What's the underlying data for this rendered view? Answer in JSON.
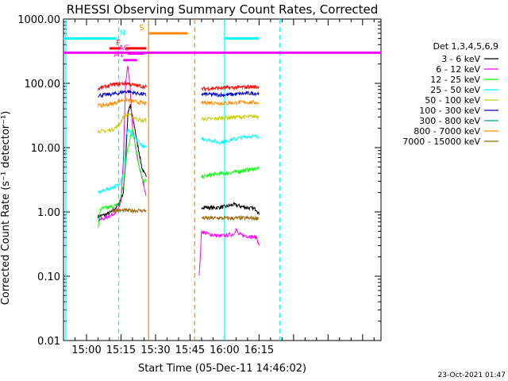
{
  "chart_data": {
    "type": "line",
    "title": "RHESSI Observing Summary Count Rates, Corrected",
    "xlabel": "Start Time (05-Dec-11 14:46:02)",
    "ylabel": "Corrected Count Rate (s⁻¹ detector⁻¹)",
    "yscale": "log",
    "ylim": [
      0.01,
      1000
    ],
    "xlim_minutes": [
      50,
      188
    ],
    "y_ticks": [
      "0.01",
      "0.10",
      "1.00",
      "10.00",
      "100.00",
      "1000.00"
    ],
    "x_ticks": [
      "15:00",
      "15:15",
      "15:30",
      "15:45",
      "16:00",
      "16:15"
    ],
    "x_tick_minutes": [
      60,
      75,
      90,
      105,
      120,
      135
    ],
    "legend_title": "Det 1,3,4,5,6,9",
    "legend_position": "right",
    "timestamp": "23-Oct-2021 01:47",
    "series": [
      {
        "name": "3 - 6 keV",
        "color": "#000000",
        "segments": [
          [
            [
              65,
              0.85
            ],
            [
              68,
              0.9
            ],
            [
              71,
              1.0
            ],
            [
              74,
              1.3
            ],
            [
              76,
              2.0
            ],
            [
              77,
              6
            ],
            [
              78,
              35
            ],
            [
              79,
              45
            ],
            [
              80,
              30
            ],
            [
              81,
              20
            ],
            [
              82,
              12
            ],
            [
              83,
              8
            ],
            [
              84,
              5
            ],
            [
              85,
              4
            ],
            [
              86,
              3.5
            ]
          ],
          [
            [
              110,
              1.2
            ],
            [
              115,
              1.15
            ],
            [
              120,
              1.2
            ],
            [
              124,
              1.3
            ],
            [
              128,
              1.2
            ],
            [
              134,
              1.1
            ],
            [
              135,
              0.9
            ]
          ]
        ]
      },
      {
        "name": "6 - 12 keV",
        "color": "#ff00ff",
        "segments": [
          [
            [
              65,
              0.75
            ],
            [
              68,
              0.8
            ],
            [
              71,
              0.9
            ],
            [
              74,
              1.1
            ],
            [
              75,
              1.5
            ],
            [
              76,
              6
            ],
            [
              77,
              100
            ],
            [
              78,
              190
            ],
            [
              79,
              80
            ],
            [
              80,
              20
            ],
            [
              81,
              12
            ],
            [
              82,
              7
            ],
            [
              83,
              5
            ],
            [
              84,
              3.5
            ],
            [
              85,
              2.5
            ],
            [
              86,
              1.8
            ]
          ],
          [
            [
              109,
              0.1
            ],
            [
              110,
              0.5
            ],
            [
              113,
              0.45
            ],
            [
              118,
              0.42
            ],
            [
              124,
              0.45
            ],
            [
              125,
              0.55
            ],
            [
              126,
              0.45
            ],
            [
              130,
              0.42
            ],
            [
              134,
              0.4
            ],
            [
              135,
              0.3
            ]
          ]
        ]
      },
      {
        "name": "12 - 25 keV",
        "color": "#00ff00",
        "segments": [
          [
            [
              65,
              0.55
            ],
            [
              66,
              1.1
            ],
            [
              68,
              1.15
            ],
            [
              71,
              1.2
            ],
            [
              74,
              1.3
            ],
            [
              76,
              2.5
            ],
            [
              77,
              6
            ],
            [
              78,
              10
            ],
            [
              79,
              14
            ],
            [
              80,
              20
            ],
            [
              81,
              12
            ],
            [
              82,
              8
            ],
            [
              83,
              5
            ],
            [
              84,
              3.5
            ],
            [
              85,
              2.8
            ],
            [
              86,
              3.2
            ]
          ],
          [
            [
              110,
              3.5
            ],
            [
              115,
              3.8
            ],
            [
              120,
              4.0
            ],
            [
              125,
              4.2
            ],
            [
              130,
              4.5
            ],
            [
              135,
              4.8
            ]
          ]
        ]
      },
      {
        "name": "25 - 50 keV",
        "color": "#00ffff",
        "segments": [
          [
            [
              65,
              2.0
            ],
            [
              68,
              2.2
            ],
            [
              71,
              2.4
            ],
            [
              74,
              2.6
            ],
            [
              76,
              4
            ],
            [
              77,
              14
            ],
            [
              78,
              20
            ],
            [
              79,
              17
            ],
            [
              80,
              15
            ],
            [
              81,
              14
            ],
            [
              82,
              13
            ],
            [
              83,
              12
            ],
            [
              84,
              11
            ],
            [
              85,
              10
            ],
            [
              86,
              10
            ]
          ],
          [
            [
              110,
              14
            ],
            [
              114,
              13
            ],
            [
              118,
              12
            ],
            [
              122,
              13
            ],
            [
              126,
              14
            ],
            [
              130,
              15
            ],
            [
              135,
              15
            ]
          ]
        ]
      },
      {
        "name": "50 - 100 keV",
        "color": "#cccc00",
        "segments": [
          [
            [
              65,
              18
            ],
            [
              68,
              18
            ],
            [
              71,
              19
            ],
            [
              74,
              22
            ],
            [
              76,
              30
            ],
            [
              78,
              33
            ],
            [
              80,
              30
            ],
            [
              82,
              28
            ],
            [
              84,
              26
            ],
            [
              86,
              27
            ]
          ],
          [
            [
              110,
              28
            ],
            [
              115,
              28
            ],
            [
              120,
              29
            ],
            [
              125,
              30
            ],
            [
              130,
              30
            ],
            [
              135,
              31
            ]
          ]
        ]
      },
      {
        "name": "100 - 300 keV",
        "color": "#0000cc",
        "segments": [
          [
            [
              65,
              65
            ],
            [
              68,
              66
            ],
            [
              71,
              68
            ],
            [
              74,
              70
            ],
            [
              76,
              74
            ],
            [
              78,
              75
            ],
            [
              80,
              72
            ],
            [
              82,
              70
            ],
            [
              84,
              68
            ],
            [
              86,
              65
            ]
          ],
          [
            [
              110,
              68
            ],
            [
              115,
              67
            ],
            [
              120,
              66
            ],
            [
              125,
              68
            ],
            [
              130,
              70
            ],
            [
              135,
              70
            ]
          ]
        ]
      },
      {
        "name": "300 - 800 keV",
        "color": "#009999",
        "segments": []
      },
      {
        "name": "800 - 7000 keV",
        "color": "#ff8800",
        "segments": [
          [
            [
              65,
              45
            ],
            [
              68,
              46
            ],
            [
              71,
              48
            ],
            [
              74,
              52
            ],
            [
              76,
              56
            ],
            [
              78,
              55
            ],
            [
              80,
              53
            ],
            [
              82,
              51
            ],
            [
              84,
              50
            ],
            [
              86,
              48
            ]
          ],
          [
            [
              110,
              50
            ],
            [
              115,
              50
            ],
            [
              120,
              49
            ],
            [
              125,
              50
            ],
            [
              130,
              51
            ],
            [
              135,
              50
            ]
          ]
        ]
      },
      {
        "name": "7000 - 15000 keV",
        "color": "#996600",
        "segments": [
          [
            [
              71,
              1.05
            ],
            [
              86,
              1.05
            ]
          ],
          [
            [
              110,
              0.8
            ],
            [
              135,
              0.8
            ]
          ]
        ]
      },
      {
        "name": "",
        "color": "#ff0000",
        "segments": [
          [
            [
              65,
              82
            ],
            [
              68,
              88
            ],
            [
              71,
              95
            ],
            [
              74,
              98
            ],
            [
              76,
              100
            ],
            [
              78,
              100
            ],
            [
              80,
              95
            ],
            [
              82,
              92
            ],
            [
              84,
              90
            ],
            [
              86,
              88
            ]
          ],
          [
            [
              110,
              82
            ],
            [
              115,
              84
            ],
            [
              120,
              85
            ],
            [
              125,
              86
            ],
            [
              130,
              88
            ],
            [
              135,
              88
            ]
          ]
        ]
      }
    ],
    "flag_lines": [
      {
        "label": "N",
        "color": "#00ffff",
        "y": 500,
        "segments": [
          [
            50,
            73
          ],
          [
            120,
            135
          ]
        ]
      },
      {
        "label": "",
        "color": "#ff00ff",
        "y": 300,
        "segments": [
          [
            50,
            188
          ]
        ]
      },
      {
        "label": "F",
        "color": "#ff0000",
        "y": 350,
        "segments": [
          [
            70,
            75
          ],
          [
            77,
            86
          ]
        ]
      },
      {
        "label": "AC",
        "color": "#ff00ff",
        "y": 290,
        "segments": [
          [
            78,
            85
          ]
        ]
      },
      {
        "label": "A1",
        "color": "#ff00ff",
        "y": 230,
        "segments": [
          [
            76,
            82
          ]
        ]
      },
      {
        "label": "S",
        "color": "#ff8800",
        "y": 600,
        "segments": [
          [
            87,
            104
          ]
        ]
      }
    ],
    "vlines": [
      {
        "x": 51,
        "color": "#00ffff",
        "style": "solid"
      },
      {
        "x": 74,
        "color": "#00ffff",
        "style": "dashed"
      },
      {
        "x": 87,
        "color": "#ff8800",
        "style": "solid"
      },
      {
        "x": 107,
        "color": "#ff8800",
        "style": "dashed"
      },
      {
        "x": 120,
        "color": "#00ffff",
        "style": "solid"
      },
      {
        "x": 144,
        "color": "#00ffff",
        "style": "dashed"
      }
    ]
  }
}
